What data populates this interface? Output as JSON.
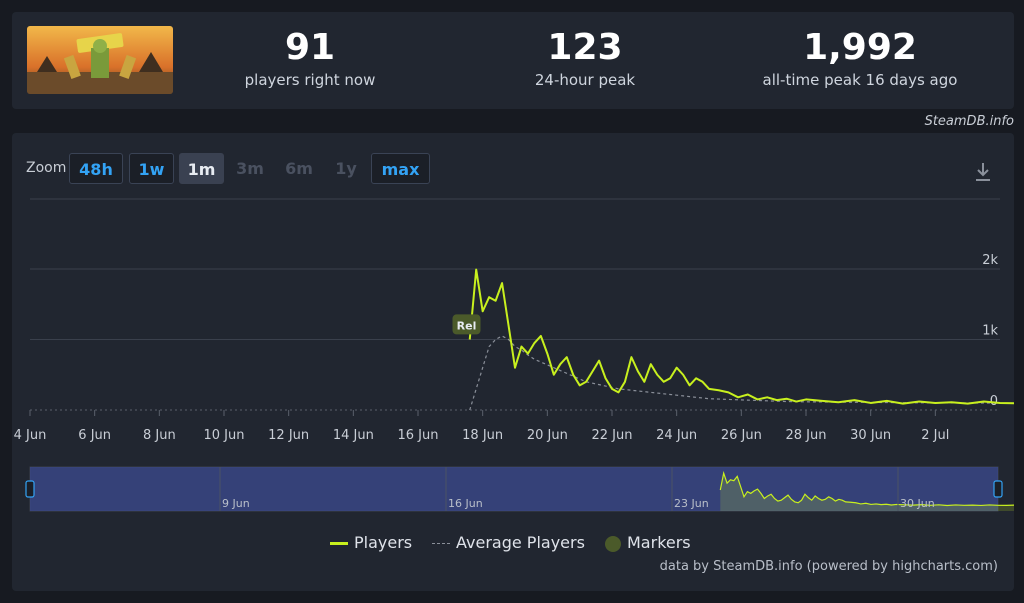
{
  "stats": [
    {
      "value": "91",
      "label": "players right now"
    },
    {
      "value": "123",
      "label": "24-hour peak"
    },
    {
      "value": "1,992",
      "label": "all-time peak 16 days ago"
    }
  ],
  "brand": "SteamDB.info",
  "zoom": {
    "label": "Zoom",
    "buttons": [
      {
        "label": "48h",
        "state": "enabled"
      },
      {
        "label": "1w",
        "state": "enabled"
      },
      {
        "label": "1m",
        "state": "selected"
      },
      {
        "label": "3m",
        "state": "disabled"
      },
      {
        "label": "6m",
        "state": "disabled"
      },
      {
        "label": "1y",
        "state": "disabled"
      },
      {
        "label": "max",
        "state": "enabled"
      }
    ]
  },
  "icons": {
    "download": "download-icon"
  },
  "colors": {
    "players": "#c8f01e",
    "average": "#8a8f99",
    "marker": "#4b5a2a",
    "navigator": "#3b4a8f"
  },
  "chart_data": {
    "type": "line",
    "x_ticks": [
      "4 Jun",
      "6 Jun",
      "8 Jun",
      "10 Jun",
      "12 Jun",
      "14 Jun",
      "16 Jun",
      "18 Jun",
      "20 Jun",
      "22 Jun",
      "24 Jun",
      "26 Jun",
      "28 Jun",
      "30 Jun",
      "2 Jul"
    ],
    "y_ticks": [
      "0",
      "1k",
      "2k"
    ],
    "ylim": [
      0,
      2000
    ],
    "xlim_days": [
      0,
      30
    ],
    "x_days": [
      13.6,
      13.8,
      14.0,
      14.2,
      14.4,
      14.6,
      14.8,
      15.0,
      15.2,
      15.4,
      15.6,
      15.8,
      16.0,
      16.2,
      16.4,
      16.6,
      16.8,
      17.0,
      17.2,
      17.4,
      17.6,
      17.8,
      18.0,
      18.2,
      18.4,
      18.6,
      18.8,
      19.0,
      19.2,
      19.4,
      19.6,
      19.8,
      20.0,
      20.2,
      20.4,
      20.6,
      20.8,
      21.0,
      21.3,
      21.6,
      21.9,
      22.2,
      22.5,
      22.8,
      23.1,
      23.4,
      23.7,
      24.0,
      24.5,
      25.0,
      25.5,
      26.0,
      26.5,
      27.0,
      27.5,
      28.0,
      28.5,
      29.0,
      29.5,
      30.0,
      30.5,
      31.0
    ],
    "series": [
      {
        "name": "Players",
        "values": [
          1000,
          1992,
          1400,
          1600,
          1550,
          1800,
          1200,
          600,
          900,
          800,
          950,
          1050,
          800,
          500,
          650,
          750,
          500,
          350,
          400,
          550,
          700,
          450,
          300,
          250,
          400,
          750,
          550,
          400,
          650,
          500,
          400,
          450,
          600,
          500,
          350,
          450,
          400,
          300,
          280,
          250,
          180,
          220,
          150,
          180,
          140,
          160,
          120,
          150,
          130,
          110,
          140,
          100,
          130,
          90,
          120,
          100,
          110,
          91,
          120,
          100,
          95,
          110
        ]
      },
      {
        "name": "Average Players",
        "values": [
          0,
          300,
          600,
          900,
          1000,
          1050,
          1000,
          900,
          850,
          780,
          720,
          680,
          640,
          600,
          560,
          520,
          480,
          440,
          400,
          380,
          360,
          340,
          320,
          300,
          290,
          280,
          270,
          260,
          250,
          240,
          230,
          220,
          210,
          200,
          190,
          180,
          170,
          160,
          155,
          150,
          145,
          140,
          135,
          130,
          125,
          120,
          118,
          116,
          114,
          112,
          110,
          108,
          106,
          104,
          103,
          102,
          101,
          100,
          99,
          98,
          97,
          96
        ]
      }
    ],
    "marker": {
      "label": "Rel",
      "x_day": 13.5
    },
    "navigator": {
      "labels": [
        "9 Jun",
        "16 Jun",
        "23 Jun",
        "30 Jun"
      ]
    },
    "legend": [
      "Players",
      "Average Players",
      "Markers"
    ],
    "legend_position": "bottom-center"
  },
  "credit": "data by SteamDB.info (powered by highcharts.com)"
}
